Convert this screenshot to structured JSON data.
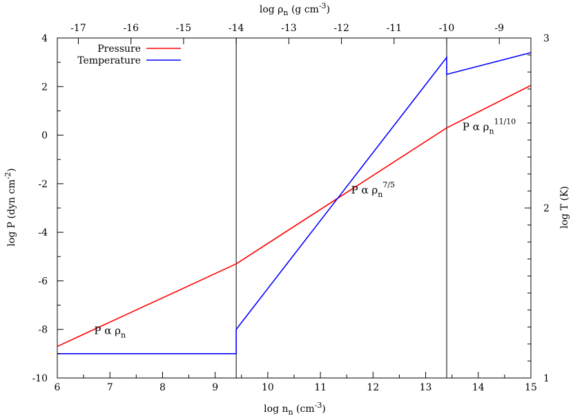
{
  "chart_data": {
    "type": "line",
    "xlabel": {
      "base": "log n",
      "sub": "n",
      "rest": " (cm",
      "sup": "-3",
      "close": ")"
    },
    "x2label": {
      "base": "log ρ",
      "sub": "n",
      "rest": " (g cm",
      "sup": "-3",
      "close": ")"
    },
    "ylabel": {
      "base": "log P (dyn cm",
      "sup": "-2",
      "close": ")"
    },
    "y2label": {
      "base": "log T (K)"
    },
    "xlim": [
      6,
      15
    ],
    "ylim": [
      -10,
      4
    ],
    "y2lim": [
      1,
      3
    ],
    "x2lim": [
      -17.4,
      -8.4
    ],
    "x_ticks": [
      6,
      7,
      8,
      9,
      10,
      11,
      12,
      13,
      14,
      15
    ],
    "y_ticks": [
      -10,
      -8,
      -6,
      -4,
      -2,
      0,
      2,
      4
    ],
    "y2_ticks": [
      1,
      2,
      3
    ],
    "x2_ticks": [
      -17,
      -16,
      -15,
      -14,
      -13,
      -12,
      -11,
      -10,
      -9
    ],
    "vlines": [
      9.4,
      13.4
    ],
    "legend": {
      "placement": "top-left"
    },
    "series": [
      {
        "name": "Pressure",
        "color": "#ff0000",
        "axis": "left",
        "x": [
          6,
          9.4,
          13.4,
          15
        ],
        "y": [
          -8.7,
          -5.3,
          0.3,
          2.05
        ]
      },
      {
        "name": "Temperature",
        "color": "#0000ff",
        "axis": "right",
        "x": [
          6,
          9.4,
          9.4,
          13.4,
          13.4,
          15
        ],
        "y": [
          1.143,
          1.143,
          1.286,
          2.886,
          2.786,
          2.914
        ]
      }
    ],
    "annotations": [
      {
        "x": 7.0,
        "y": -8.2,
        "base": "P α ρ",
        "sub": "n",
        "sup": ""
      },
      {
        "x": 12.0,
        "y": -2.4,
        "base": "P α ρ",
        "sub": "n",
        "sup": "7/5"
      },
      {
        "x": 13.7,
        "y": 0.2,
        "base": "P α ρ",
        "sub": "n",
        "sup": "11/10"
      }
    ]
  }
}
